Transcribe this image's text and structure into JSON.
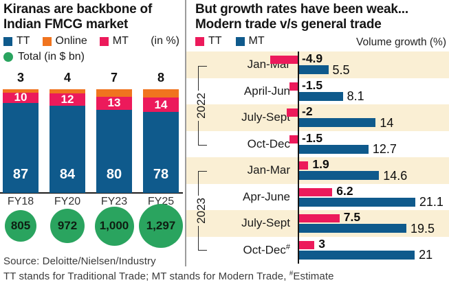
{
  "chart_data": [
    {
      "type": "bar",
      "subtype": "stacked-column",
      "title": "Kiranas are backbone of Indian FMCG market",
      "title_lines": [
        "Kiranas are backbone of",
        "Indian FMCG market"
      ],
      "unit_label": "(in %)",
      "categories": [
        "FY18",
        "FY20",
        "FY23",
        "FY25"
      ],
      "series": [
        {
          "name": "TT",
          "color": "#0f5a8c",
          "values": [
            87,
            84,
            80,
            78
          ]
        },
        {
          "name": "MT",
          "color": "#ec1a5b",
          "values": [
            10,
            12,
            13,
            14
          ]
        },
        {
          "name": "Online",
          "color": "#f0741f",
          "values": [
            3,
            4,
            7,
            8
          ]
        }
      ],
      "totals": {
        "label": "Total (in $ bn)",
        "color": "#2aa45f",
        "values": [
          "805",
          "972",
          "1,000",
          "1,297"
        ]
      },
      "ylim": [
        0,
        100
      ]
    },
    {
      "type": "bar",
      "subtype": "horizontal-grouped",
      "title": "But growth rates have been weak... Modern trade v/s general trade",
      "title_lines": [
        "But growth rates have been weak...",
        "Modern trade v/s general trade"
      ],
      "axis_label": "Volume growth (%)",
      "series": [
        {
          "name": "TT",
          "color": "#ec1a5b"
        },
        {
          "name": "MT",
          "color": "#0f5a8c"
        }
      ],
      "stripe_color": "#faefd4",
      "year_groups": [
        {
          "year": "2022",
          "row_start": 0,
          "row_end": 3
        },
        {
          "year": "2023",
          "row_start": 4,
          "row_end": 7
        }
      ],
      "rows": [
        {
          "quarter": "Jan-Mar",
          "tt": -4.9,
          "tt_label": "-4.9",
          "mt": 5.5,
          "mt_label": "5.5"
        },
        {
          "quarter": "April-Jun",
          "tt": -1.5,
          "tt_label": "-1.5",
          "mt": 8.1,
          "mt_label": "8.1"
        },
        {
          "quarter": "July-Sept",
          "tt": -2,
          "tt_label": "-2",
          "mt": 14,
          "mt_label": "14"
        },
        {
          "quarter": "Oct-Dec",
          "tt": -1.5,
          "tt_label": "-1.5",
          "mt": 12.7,
          "mt_label": "12.7"
        },
        {
          "quarter": "Jan-Mar",
          "tt": 1.9,
          "tt_label": "1.9",
          "mt": 14.6,
          "mt_label": "14.6"
        },
        {
          "quarter": "Apr-June",
          "tt": 6.2,
          "tt_label": "6.2",
          "mt": 21.1,
          "mt_label": "21.1"
        },
        {
          "quarter": "July-Sept",
          "tt": 7.5,
          "tt_label": "7.5",
          "mt": 19.5,
          "mt_label": "19.5"
        },
        {
          "quarter": "Oct-Dec",
          "quarter_suffix": "#",
          "tt": 3,
          "tt_label": "3",
          "mt": 21,
          "mt_label": "21"
        }
      ],
      "xlim": [
        -5,
        22
      ]
    }
  ],
  "footer": {
    "source": "Source: Deloitte/Nielsen/Industry",
    "note": "TT stands for Traditional Trade; MT stands for Modern Trade, ",
    "note_sup": "#",
    "note_suffix": "Estimate"
  }
}
